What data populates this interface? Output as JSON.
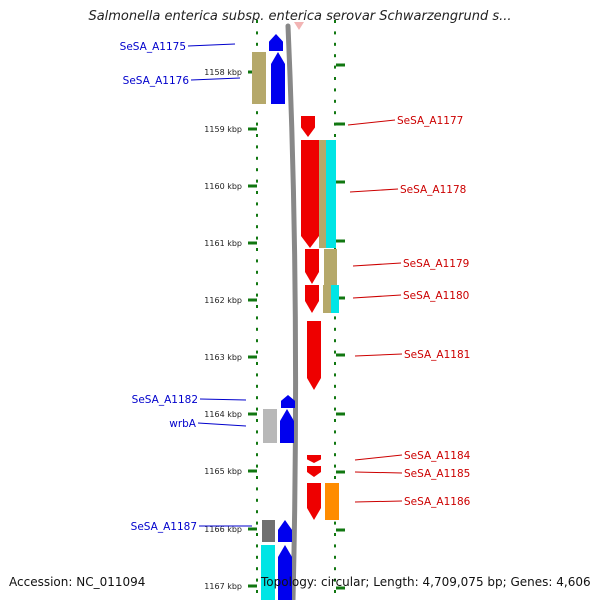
{
  "title": "Salmonella enterica subsp. enterica serovar Schwarzengrund s...",
  "accession_text": "Accession: NC_011094",
  "stats_text": "Topology: circular; Length: 4,709,075 bp; Genes: 4,606",
  "ruler": [
    "1158 kbp",
    "1159 kbp",
    "1160 kbp",
    "1161 kbp",
    "1162 kbp",
    "1163 kbp",
    "1164 kbp",
    "1165 kbp",
    "1166 kbp",
    "1167 kbp"
  ],
  "colors": {
    "forward_gene": "#0000ee",
    "reverse_gene": "#ee0000",
    "forward_label": "#0000cc",
    "reverse_label": "#cc0000",
    "tick": "#117711",
    "backbone": "#888888",
    "cog_khaki": "#b5a86a",
    "cog_cyan": "#00e5e5",
    "cog_gray": "#b8b8b8",
    "cog_dark_gray": "#707070",
    "cog_orange": "#ff8c00"
  },
  "forward_genes": [
    {
      "label": "SeSA_A1175"
    },
    {
      "label": "SeSA_A1176"
    },
    {
      "label": "SeSA_A1182"
    },
    {
      "label": "wrbA"
    },
    {
      "label": "SeSA_A1187"
    }
  ],
  "reverse_genes": [
    {
      "label": "SeSA_A1177"
    },
    {
      "label": "SeSA_A1178"
    },
    {
      "label": "SeSA_A1179"
    },
    {
      "label": "SeSA_A1180"
    },
    {
      "label": "SeSA_A1181"
    },
    {
      "label": "SeSA_A1184"
    },
    {
      "label": "SeSA_A1185"
    },
    {
      "label": "SeSA_A1186"
    }
  ]
}
